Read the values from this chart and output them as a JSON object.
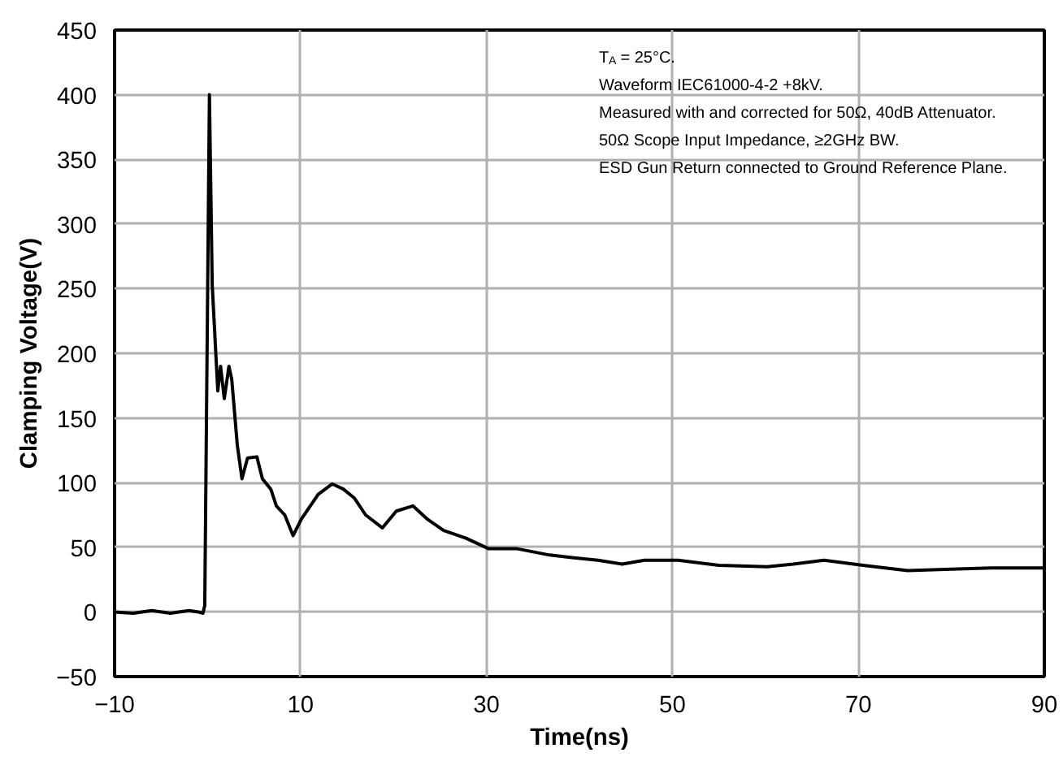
{
  "chart_data": {
    "type": "line",
    "xlabel": "Time(ns)",
    "ylabel": "Clamping Voltage(V)",
    "xlim": [
      -10,
      90
    ],
    "xticks": [
      -10,
      10,
      30,
      50,
      70,
      90
    ],
    "ylim": [
      -50,
      450
    ],
    "yticks": [
      -50,
      0,
      50,
      100,
      150,
      200,
      250,
      300,
      350,
      400,
      450
    ],
    "grid": true,
    "marker": "none",
    "line_style": "solid",
    "annotations": [
      "T$_{A}$ = 25°C.",
      "Waveform IEC61000-4-2 +8kV.",
      "Measured with and corrected for 50Ω, 40dB Attenuator.",
      "50Ω Scope Input Impedance, ≥2GHz BW.",
      "ESD Gun Return connected to Ground Reference Plane."
    ],
    "series": [
      {
        "color": "#000000",
        "x": [
          -10,
          -8,
          -6,
          -4,
          -2,
          -1,
          -0.5,
          -0.3,
          0.2,
          0.5,
          1.1,
          1.4,
          1.8,
          2.3,
          2.6,
          3.2,
          3.7,
          4.3,
          5.3,
          5.9,
          6.8,
          7.4,
          8.3,
          9.2,
          10.1,
          11.9,
          13.4,
          14.6,
          15.8,
          17,
          18.8,
          20.3,
          22.1,
          23.6,
          25.4,
          27.8,
          30.2,
          33.2,
          36.8,
          39.2,
          42,
          44.6,
          47,
          50.6,
          55,
          60.2,
          63,
          66.3,
          70.5,
          75.3,
          80,
          84.3,
          90
        ],
        "values": [
          0,
          -1,
          1,
          -1,
          1,
          0,
          -1,
          5,
          400,
          253,
          171,
          190,
          165,
          190,
          180,
          129,
          103,
          119,
          120,
          103,
          95,
          82,
          75,
          59,
          72,
          91,
          99,
          95,
          88,
          75,
          65,
          78,
          82,
          72,
          63,
          57,
          49,
          49,
          44,
          42,
          40,
          37,
          40,
          40,
          36,
          35,
          37,
          40,
          36,
          32,
          33,
          34,
          34
        ]
      }
    ]
  }
}
